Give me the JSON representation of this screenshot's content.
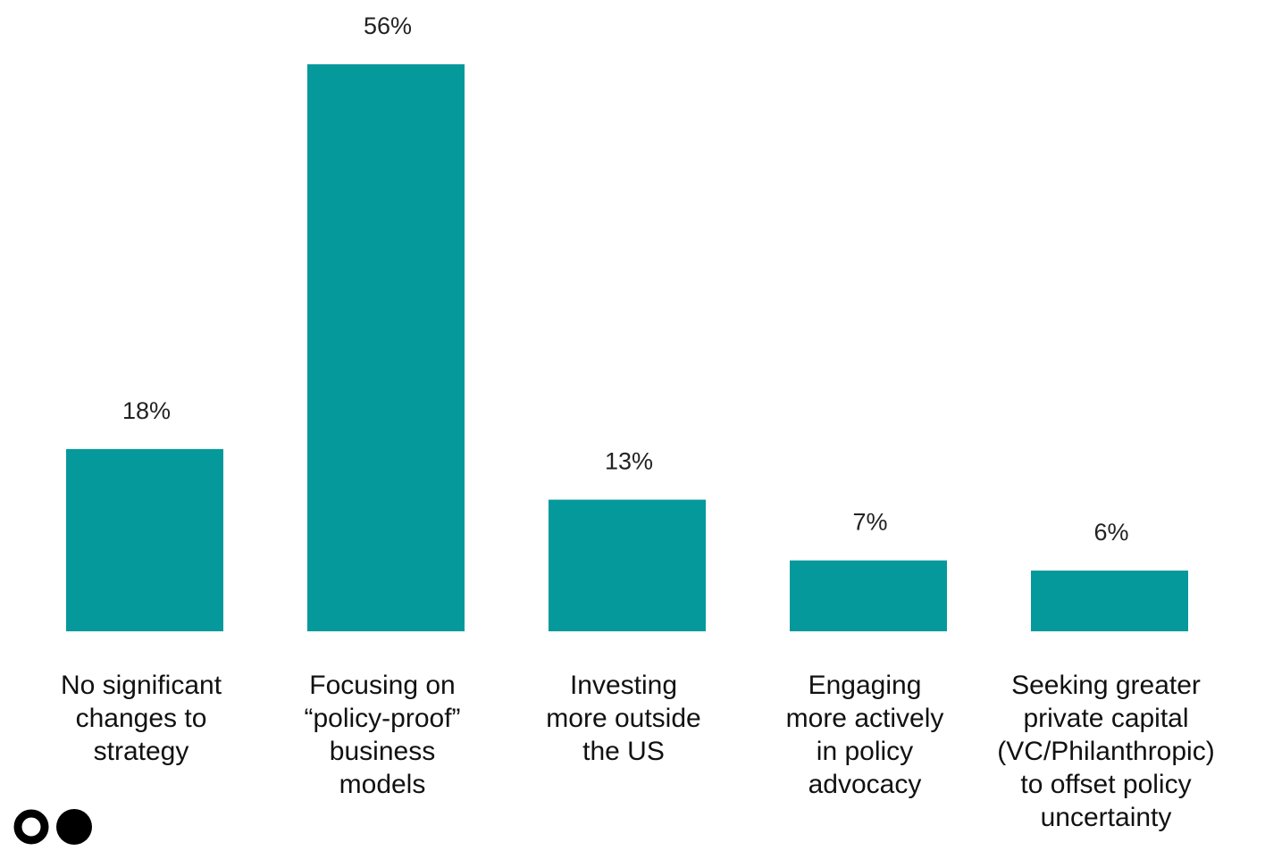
{
  "chart_data": {
    "type": "bar",
    "title": "",
    "xlabel": "",
    "ylabel": "",
    "ylim": [
      0,
      56
    ],
    "grid": false,
    "value_suffix": "%",
    "bar_color": "#05999c",
    "categories": [
      [
        "No significant",
        "changes to",
        "strategy"
      ],
      [
        "Focusing on",
        "“policy-proof”",
        "business",
        "models"
      ],
      [
        "Investing",
        "more outside",
        "the US"
      ],
      [
        "Engaging",
        "more actively",
        "in policy",
        "advocacy"
      ],
      [
        "Seeking greater",
        "private capital",
        "(VC/Philanthropic)",
        "to offset policy",
        "uncertainty"
      ]
    ],
    "values": [
      18,
      56,
      13,
      7,
      6
    ],
    "data_labels": [
      "18%",
      "56%",
      "13%",
      "7%",
      "6%"
    ]
  },
  "logo": {
    "name": "logo-icon",
    "color": "#000000"
  }
}
